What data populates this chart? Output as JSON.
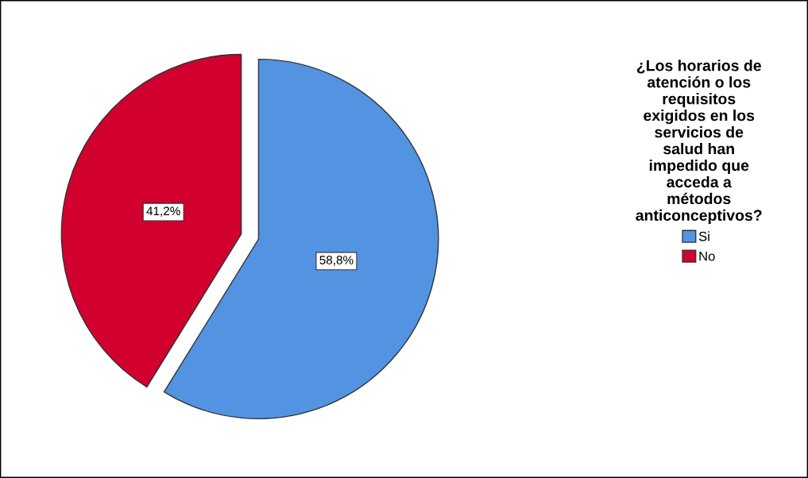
{
  "chart_data": {
    "type": "pie",
    "legend_title": "¿Los horarios de\natención o los\nrequisitos\nexigidos en los\nservicios de\nsalud han\nimpedido que\nacceda a\nmétodos\nanticonceptivos?",
    "categories": [
      "Si",
      "No"
    ],
    "values": [
      58.8,
      41.2
    ],
    "colors": [
      "#5294e2",
      "#d1002f"
    ],
    "value_labels": [
      "58,8%",
      "41,2%"
    ],
    "legend": "right"
  }
}
